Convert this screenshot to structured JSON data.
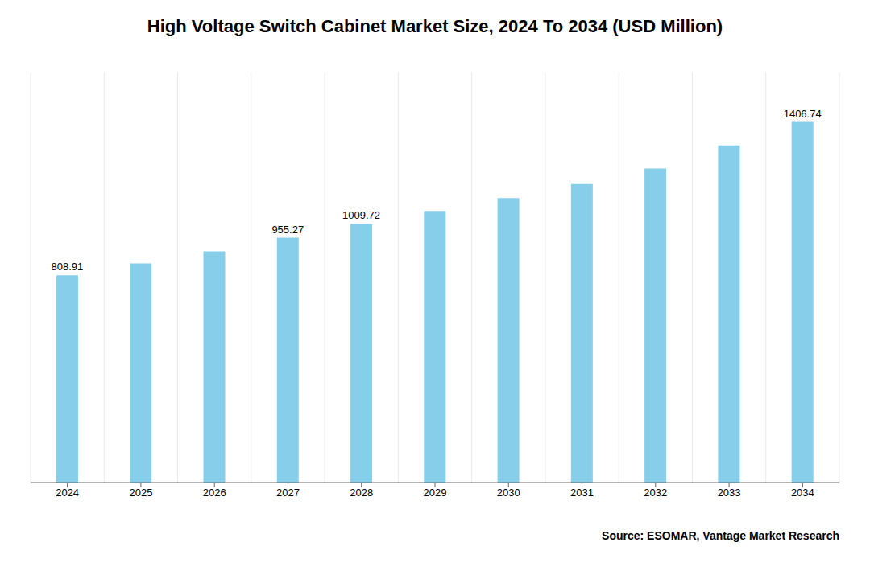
{
  "chart_data": {
    "type": "bar",
    "title": "High Voltage Switch Cabinet Market Size, 2024 To 2034 (USD Million)",
    "categories": [
      "2024",
      "2025",
      "2026",
      "2027",
      "2028",
      "2029",
      "2030",
      "2031",
      "2032",
      "2033",
      "2034"
    ],
    "values": [
      808.91,
      855.0,
      902.0,
      955.27,
      1009.72,
      1060.0,
      1110.0,
      1165.0,
      1225.0,
      1315.0,
      1406.74
    ],
    "value_labels": [
      "808.91",
      null,
      null,
      "955.27",
      "1009.72",
      null,
      null,
      null,
      null,
      null,
      "1406.74"
    ],
    "color": "#87CEEB",
    "ylim": [
      0,
      1600
    ],
    "grid": true,
    "tick_labels": "x",
    "annotations": [
      "Source: ESOMAR, Vantage Market Research"
    ]
  }
}
